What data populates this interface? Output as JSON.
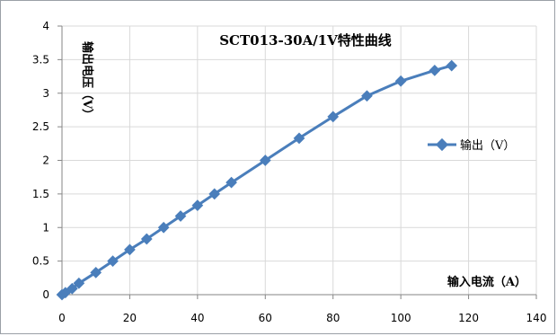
{
  "colors": {
    "series": "#4a7ebb",
    "grid": "#d9d9d9",
    "axis": "#868686",
    "frame": "#9aa0a6"
  },
  "chart_data": {
    "type": "line",
    "title": "SCT013-30A/1V特性曲线",
    "xlabel": "输入电流（A）",
    "ylabel": "输出电压（V）",
    "xlim": [
      0,
      140
    ],
    "ylim": [
      0,
      4
    ],
    "x_ticks": [
      "0",
      "20",
      "40",
      "60",
      "80",
      "100",
      "120",
      "140"
    ],
    "y_ticks": [
      "0",
      "0.5",
      "1",
      "1.5",
      "2",
      "2.5",
      "3",
      "3.5",
      "4"
    ],
    "grid": true,
    "legend_position": "right",
    "marker": "diamond",
    "series": [
      {
        "name": "输出（V）",
        "x": [
          0,
          1,
          3,
          5,
          10,
          15,
          20,
          25,
          30,
          35,
          40,
          45,
          50,
          60,
          70,
          80,
          90,
          100,
          110,
          115
        ],
        "y": [
          0,
          0.03,
          0.09,
          0.17,
          0.33,
          0.5,
          0.67,
          0.83,
          1.0,
          1.17,
          1.33,
          1.5,
          1.67,
          2.0,
          2.33,
          2.65,
          2.96,
          3.18,
          3.34,
          3.41
        ]
      }
    ]
  }
}
